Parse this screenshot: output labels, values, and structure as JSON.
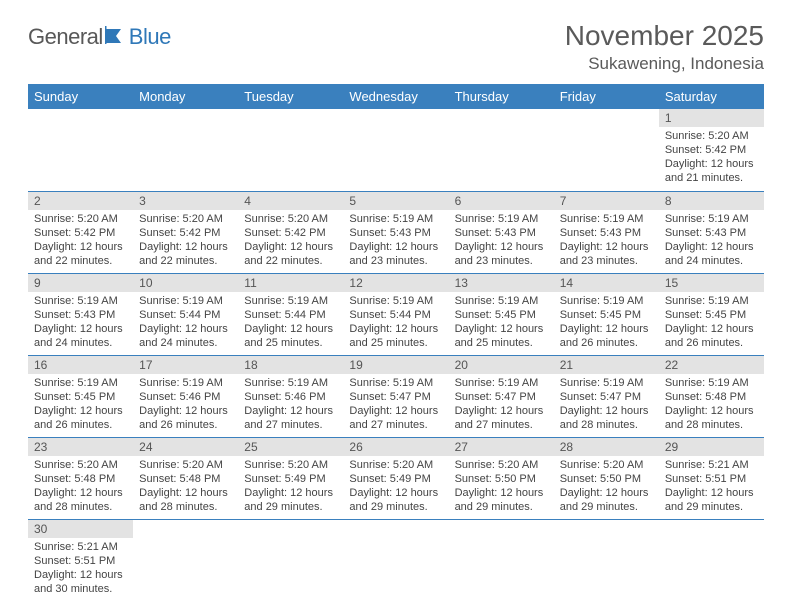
{
  "logo": {
    "text1": "General",
    "text2": "Blue"
  },
  "title": "November 2025",
  "location": "Sukawening, Indonesia",
  "colors": {
    "header_bg": "#3a80be",
    "daynum_bg": "#e3e3e3",
    "text": "#444444"
  },
  "day_labels": [
    "Sunday",
    "Monday",
    "Tuesday",
    "Wednesday",
    "Thursday",
    "Friday",
    "Saturday"
  ],
  "weeks": [
    [
      null,
      null,
      null,
      null,
      null,
      null,
      {
        "n": "1",
        "sr": "Sunrise: 5:20 AM",
        "ss": "Sunset: 5:42 PM",
        "d1": "Daylight: 12 hours",
        "d2": "and 21 minutes."
      }
    ],
    [
      {
        "n": "2",
        "sr": "Sunrise: 5:20 AM",
        "ss": "Sunset: 5:42 PM",
        "d1": "Daylight: 12 hours",
        "d2": "and 22 minutes."
      },
      {
        "n": "3",
        "sr": "Sunrise: 5:20 AM",
        "ss": "Sunset: 5:42 PM",
        "d1": "Daylight: 12 hours",
        "d2": "and 22 minutes."
      },
      {
        "n": "4",
        "sr": "Sunrise: 5:20 AM",
        "ss": "Sunset: 5:42 PM",
        "d1": "Daylight: 12 hours",
        "d2": "and 22 minutes."
      },
      {
        "n": "5",
        "sr": "Sunrise: 5:19 AM",
        "ss": "Sunset: 5:43 PM",
        "d1": "Daylight: 12 hours",
        "d2": "and 23 minutes."
      },
      {
        "n": "6",
        "sr": "Sunrise: 5:19 AM",
        "ss": "Sunset: 5:43 PM",
        "d1": "Daylight: 12 hours",
        "d2": "and 23 minutes."
      },
      {
        "n": "7",
        "sr": "Sunrise: 5:19 AM",
        "ss": "Sunset: 5:43 PM",
        "d1": "Daylight: 12 hours",
        "d2": "and 23 minutes."
      },
      {
        "n": "8",
        "sr": "Sunrise: 5:19 AM",
        "ss": "Sunset: 5:43 PM",
        "d1": "Daylight: 12 hours",
        "d2": "and 24 minutes."
      }
    ],
    [
      {
        "n": "9",
        "sr": "Sunrise: 5:19 AM",
        "ss": "Sunset: 5:43 PM",
        "d1": "Daylight: 12 hours",
        "d2": "and 24 minutes."
      },
      {
        "n": "10",
        "sr": "Sunrise: 5:19 AM",
        "ss": "Sunset: 5:44 PM",
        "d1": "Daylight: 12 hours",
        "d2": "and 24 minutes."
      },
      {
        "n": "11",
        "sr": "Sunrise: 5:19 AM",
        "ss": "Sunset: 5:44 PM",
        "d1": "Daylight: 12 hours",
        "d2": "and 25 minutes."
      },
      {
        "n": "12",
        "sr": "Sunrise: 5:19 AM",
        "ss": "Sunset: 5:44 PM",
        "d1": "Daylight: 12 hours",
        "d2": "and 25 minutes."
      },
      {
        "n": "13",
        "sr": "Sunrise: 5:19 AM",
        "ss": "Sunset: 5:45 PM",
        "d1": "Daylight: 12 hours",
        "d2": "and 25 minutes."
      },
      {
        "n": "14",
        "sr": "Sunrise: 5:19 AM",
        "ss": "Sunset: 5:45 PM",
        "d1": "Daylight: 12 hours",
        "d2": "and 26 minutes."
      },
      {
        "n": "15",
        "sr": "Sunrise: 5:19 AM",
        "ss": "Sunset: 5:45 PM",
        "d1": "Daylight: 12 hours",
        "d2": "and 26 minutes."
      }
    ],
    [
      {
        "n": "16",
        "sr": "Sunrise: 5:19 AM",
        "ss": "Sunset: 5:45 PM",
        "d1": "Daylight: 12 hours",
        "d2": "and 26 minutes."
      },
      {
        "n": "17",
        "sr": "Sunrise: 5:19 AM",
        "ss": "Sunset: 5:46 PM",
        "d1": "Daylight: 12 hours",
        "d2": "and 26 minutes."
      },
      {
        "n": "18",
        "sr": "Sunrise: 5:19 AM",
        "ss": "Sunset: 5:46 PM",
        "d1": "Daylight: 12 hours",
        "d2": "and 27 minutes."
      },
      {
        "n": "19",
        "sr": "Sunrise: 5:19 AM",
        "ss": "Sunset: 5:47 PM",
        "d1": "Daylight: 12 hours",
        "d2": "and 27 minutes."
      },
      {
        "n": "20",
        "sr": "Sunrise: 5:19 AM",
        "ss": "Sunset: 5:47 PM",
        "d1": "Daylight: 12 hours",
        "d2": "and 27 minutes."
      },
      {
        "n": "21",
        "sr": "Sunrise: 5:19 AM",
        "ss": "Sunset: 5:47 PM",
        "d1": "Daylight: 12 hours",
        "d2": "and 28 minutes."
      },
      {
        "n": "22",
        "sr": "Sunrise: 5:19 AM",
        "ss": "Sunset: 5:48 PM",
        "d1": "Daylight: 12 hours",
        "d2": "and 28 minutes."
      }
    ],
    [
      {
        "n": "23",
        "sr": "Sunrise: 5:20 AM",
        "ss": "Sunset: 5:48 PM",
        "d1": "Daylight: 12 hours",
        "d2": "and 28 minutes."
      },
      {
        "n": "24",
        "sr": "Sunrise: 5:20 AM",
        "ss": "Sunset: 5:48 PM",
        "d1": "Daylight: 12 hours",
        "d2": "and 28 minutes."
      },
      {
        "n": "25",
        "sr": "Sunrise: 5:20 AM",
        "ss": "Sunset: 5:49 PM",
        "d1": "Daylight: 12 hours",
        "d2": "and 29 minutes."
      },
      {
        "n": "26",
        "sr": "Sunrise: 5:20 AM",
        "ss": "Sunset: 5:49 PM",
        "d1": "Daylight: 12 hours",
        "d2": "and 29 minutes."
      },
      {
        "n": "27",
        "sr": "Sunrise: 5:20 AM",
        "ss": "Sunset: 5:50 PM",
        "d1": "Daylight: 12 hours",
        "d2": "and 29 minutes."
      },
      {
        "n": "28",
        "sr": "Sunrise: 5:20 AM",
        "ss": "Sunset: 5:50 PM",
        "d1": "Daylight: 12 hours",
        "d2": "and 29 minutes."
      },
      {
        "n": "29",
        "sr": "Sunrise: 5:21 AM",
        "ss": "Sunset: 5:51 PM",
        "d1": "Daylight: 12 hours",
        "d2": "and 29 minutes."
      }
    ],
    [
      {
        "n": "30",
        "sr": "Sunrise: 5:21 AM",
        "ss": "Sunset: 5:51 PM",
        "d1": "Daylight: 12 hours",
        "d2": "and 30 minutes."
      },
      null,
      null,
      null,
      null,
      null,
      null
    ]
  ]
}
